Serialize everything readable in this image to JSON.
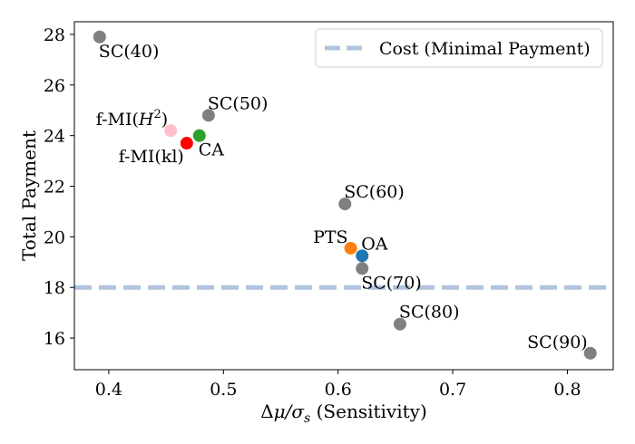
{
  "chart_data": {
    "type": "scatter",
    "title": "",
    "xlabel": "Δμ/σ_s (Sensitivity)",
    "ylabel": "Total Payment",
    "xlim": [
      0.37,
      0.84
    ],
    "ylim": [
      14.75,
      28.5
    ],
    "xticks": [
      0.4,
      0.5,
      0.6,
      0.7,
      0.8
    ],
    "xtick_labels": [
      "0.4",
      "0.5",
      "0.6",
      "0.7",
      "0.8"
    ],
    "yticks": [
      16,
      18,
      20,
      22,
      24,
      26,
      28
    ],
    "ytick_labels": [
      "16",
      "18",
      "20",
      "22",
      "24",
      "26",
      "28"
    ],
    "grid": false,
    "legend": {
      "position": "top-right",
      "entries": [
        {
          "label": "Cost (Minimal Payment)",
          "color": "#b0c4de",
          "style": "dashed"
        }
      ]
    },
    "reference_lines": [
      {
        "name": "Cost (Minimal Payment)",
        "y": 18,
        "color": "#b0c4de",
        "style": "dashed"
      }
    ],
    "points": [
      {
        "label": "SC(40)",
        "x": 0.392,
        "y": 27.9,
        "color": "#808080",
        "anchor": "below-right"
      },
      {
        "label": "SC(50)",
        "x": 0.487,
        "y": 24.8,
        "color": "#808080",
        "anchor": "above-right"
      },
      {
        "label": "f-MI(H^2)",
        "x": 0.454,
        "y": 24.2,
        "color": "#ffc0cb",
        "anchor": "above-left"
      },
      {
        "label": "CA",
        "x": 0.479,
        "y": 24.0,
        "color": "#2ca02c",
        "anchor": "below-right"
      },
      {
        "label": "f-MI(kl)",
        "x": 0.468,
        "y": 23.7,
        "color": "#ff0000",
        "anchor": "below-left"
      },
      {
        "label": "SC(60)",
        "x": 0.606,
        "y": 21.3,
        "color": "#808080",
        "anchor": "above-right"
      },
      {
        "label": "PTS",
        "x": 0.611,
        "y": 19.55,
        "color": "#ff7f0e",
        "anchor": "above-left"
      },
      {
        "label": "OA",
        "x": 0.621,
        "y": 19.25,
        "color": "#1f77b4",
        "anchor": "above-right"
      },
      {
        "label": "SC(70)",
        "x": 0.621,
        "y": 18.75,
        "color": "#808080",
        "anchor": "below-right"
      },
      {
        "label": "SC(80)",
        "x": 0.654,
        "y": 16.55,
        "color": "#808080",
        "anchor": "above-right"
      },
      {
        "label": "SC(90)",
        "x": 0.82,
        "y": 15.4,
        "color": "#808080",
        "anchor": "above-left"
      }
    ]
  }
}
